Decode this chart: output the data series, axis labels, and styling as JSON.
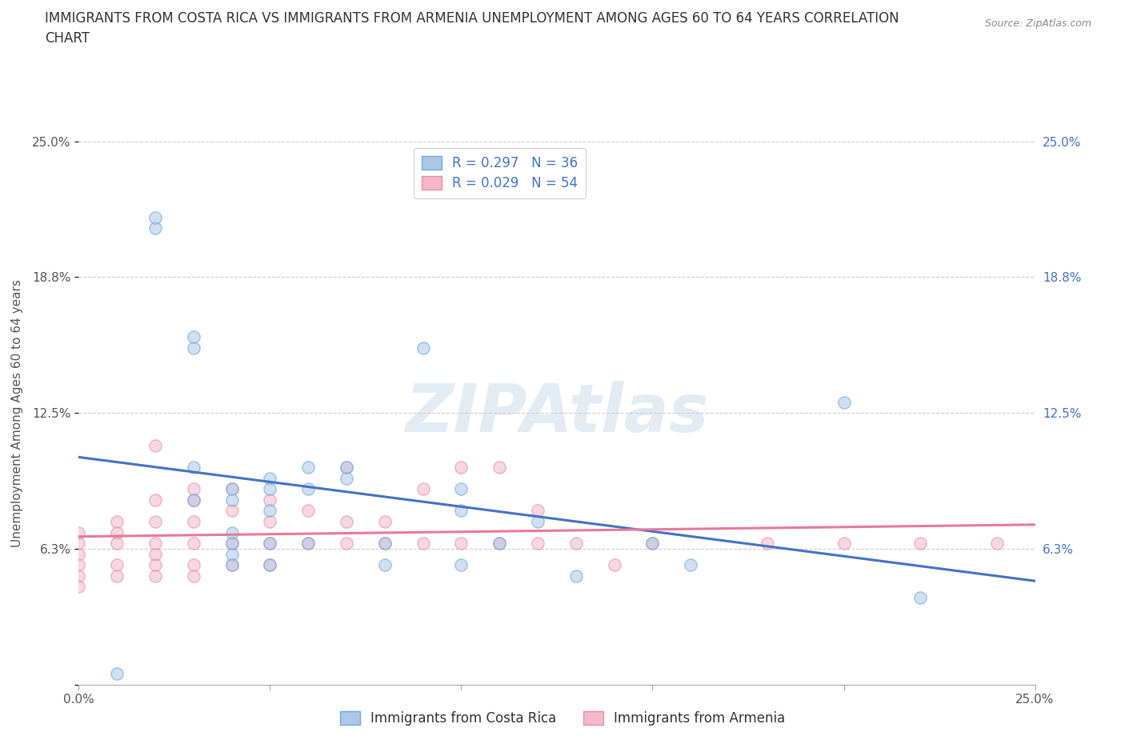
{
  "title_line1": "IMMIGRANTS FROM COSTA RICA VS IMMIGRANTS FROM ARMENIA UNEMPLOYMENT AMONG AGES 60 TO 64 YEARS CORRELATION",
  "title_line2": "CHART",
  "source_text": "Source: ZipAtlas.com",
  "ylabel": "Unemployment Among Ages 60 to 64 years",
  "xlim": [
    0.0,
    0.25
  ],
  "ylim": [
    0.0,
    0.25
  ],
  "xticks": [
    0.0,
    0.05,
    0.1,
    0.15,
    0.2,
    0.25
  ],
  "xticklabels": [
    "0.0%",
    "",
    "",
    "",
    "",
    "25.0%"
  ],
  "yticks": [
    0.0,
    0.0625,
    0.125,
    0.1875,
    0.25
  ],
  "yticklabels": [
    "",
    "6.3%",
    "12.5%",
    "18.8%",
    "25.0%"
  ],
  "right_yticklabels": [
    "",
    "6.3%",
    "12.5%",
    "18.8%",
    "25.0%"
  ],
  "costa_rica_color": "#aec6e8",
  "costa_rica_edge_color": "#6aaed6",
  "armenia_color": "#f4b8c8",
  "armenia_edge_color": "#e88fa8",
  "costa_rica_line_color": "#4472c4",
  "armenia_line_color": "#e8799a",
  "costa_rica_R": 0.297,
  "costa_rica_N": 36,
  "armenia_R": 0.029,
  "armenia_N": 54,
  "legend_label_costa_rica": "Immigrants from Costa Rica",
  "legend_label_armenia": "Immigrants from Armenia",
  "costa_rica_x": [
    0.01,
    0.02,
    0.02,
    0.03,
    0.03,
    0.03,
    0.03,
    0.04,
    0.04,
    0.04,
    0.04,
    0.04,
    0.04,
    0.05,
    0.05,
    0.05,
    0.05,
    0.05,
    0.06,
    0.06,
    0.06,
    0.07,
    0.07,
    0.08,
    0.08,
    0.09,
    0.1,
    0.1,
    0.1,
    0.11,
    0.12,
    0.13,
    0.15,
    0.16,
    0.2,
    0.22
  ],
  "costa_rica_y": [
    0.005,
    0.21,
    0.215,
    0.155,
    0.16,
    0.1,
    0.085,
    0.085,
    0.09,
    0.07,
    0.065,
    0.06,
    0.055,
    0.095,
    0.09,
    0.08,
    0.065,
    0.055,
    0.1,
    0.09,
    0.065,
    0.1,
    0.095,
    0.065,
    0.055,
    0.155,
    0.09,
    0.08,
    0.055,
    0.065,
    0.075,
    0.05,
    0.065,
    0.055,
    0.13,
    0.04
  ],
  "armenia_x": [
    0.0,
    0.0,
    0.0,
    0.0,
    0.0,
    0.0,
    0.01,
    0.01,
    0.01,
    0.01,
    0.01,
    0.02,
    0.02,
    0.02,
    0.02,
    0.02,
    0.02,
    0.02,
    0.03,
    0.03,
    0.03,
    0.03,
    0.03,
    0.03,
    0.04,
    0.04,
    0.04,
    0.04,
    0.05,
    0.05,
    0.05,
    0.05,
    0.06,
    0.06,
    0.07,
    0.07,
    0.07,
    0.08,
    0.08,
    0.09,
    0.09,
    0.1,
    0.1,
    0.11,
    0.11,
    0.12,
    0.12,
    0.13,
    0.14,
    0.15,
    0.18,
    0.2,
    0.22,
    0.24
  ],
  "armenia_y": [
    0.07,
    0.065,
    0.06,
    0.055,
    0.05,
    0.045,
    0.075,
    0.07,
    0.065,
    0.055,
    0.05,
    0.11,
    0.085,
    0.075,
    0.065,
    0.06,
    0.055,
    0.05,
    0.09,
    0.085,
    0.075,
    0.065,
    0.055,
    0.05,
    0.09,
    0.08,
    0.065,
    0.055,
    0.085,
    0.075,
    0.065,
    0.055,
    0.08,
    0.065,
    0.1,
    0.075,
    0.065,
    0.075,
    0.065,
    0.09,
    0.065,
    0.1,
    0.065,
    0.1,
    0.065,
    0.08,
    0.065,
    0.065,
    0.055,
    0.065,
    0.065,
    0.065,
    0.065,
    0.065
  ],
  "background_color": "#ffffff",
  "grid_color": "#cccccc",
  "title_fontsize": 12,
  "label_fontsize": 11,
  "tick_fontsize": 11,
  "legend_fontsize": 12,
  "dot_size": 120,
  "dot_alpha": 0.55,
  "dot_linewidth": 1.2,
  "watermark_text": "ZIPAtlas",
  "watermark_color": "#c8d8e8",
  "watermark_alpha": 0.5,
  "watermark_fontsize": 60
}
